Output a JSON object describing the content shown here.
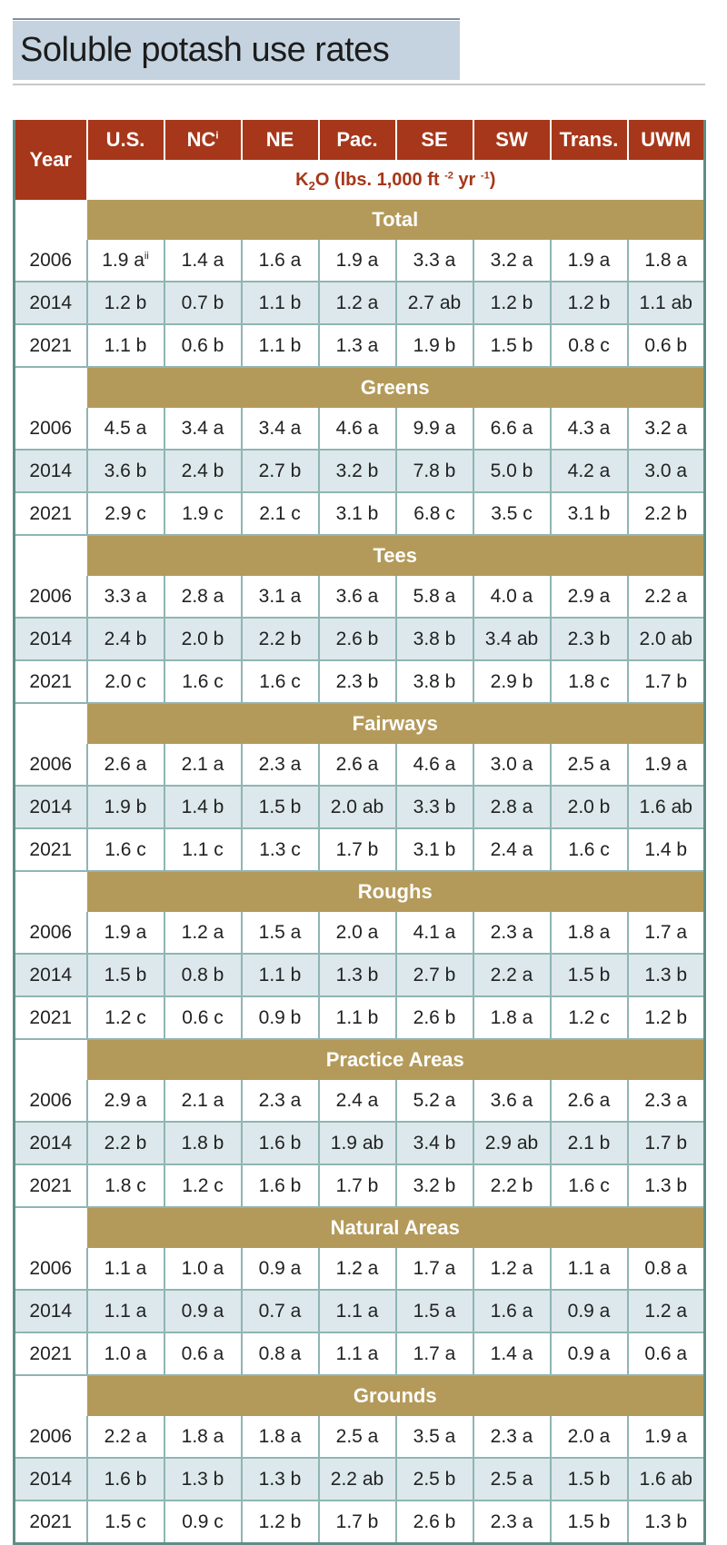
{
  "title": "Soluble potash use rates",
  "header": {
    "year_label": "Year",
    "regions": [
      {
        "label": "U.S.",
        "sup": ""
      },
      {
        "label": "NC",
        "sup": "i"
      },
      {
        "label": "NE",
        "sup": ""
      },
      {
        "label": "Pac.",
        "sup": ""
      },
      {
        "label": "SE",
        "sup": ""
      },
      {
        "label": "SW",
        "sup": ""
      },
      {
        "label": "Trans.",
        "sup": ""
      },
      {
        "label": "UWM",
        "sup": ""
      }
    ],
    "unit": {
      "k": "K",
      "sub": "2",
      "o": "O",
      "lbs": " (lbs. 1,000 ft ",
      "exp1": "-2",
      "yr": " yr ",
      "exp2": "-1",
      "close": ")"
    }
  },
  "sections": [
    {
      "name": "Total",
      "rows": [
        {
          "year": "2006",
          "values": [
            "1.9 a",
            "1.4 a",
            "1.6 a",
            "1.9 a",
            "3.3 a",
            "3.2 a",
            "1.9 a",
            "1.8 a"
          ],
          "first_sup": "ii"
        },
        {
          "year": "2014",
          "values": [
            "1.2 b",
            "0.7 b",
            "1.1 b",
            "1.2 a",
            "2.7 ab",
            "1.2 b",
            "1.2 b",
            "1.1 ab"
          ]
        },
        {
          "year": "2021",
          "values": [
            "1.1 b",
            "0.6 b",
            "1.1 b",
            "1.3 a",
            "1.9 b",
            "1.5 b",
            "0.8 c",
            "0.6 b"
          ]
        }
      ]
    },
    {
      "name": "Greens",
      "rows": [
        {
          "year": "2006",
          "values": [
            "4.5 a",
            "3.4 a",
            "3.4 a",
            "4.6 a",
            "9.9 a",
            "6.6 a",
            "4.3 a",
            "3.2 a"
          ]
        },
        {
          "year": "2014",
          "values": [
            "3.6 b",
            "2.4 b",
            "2.7 b",
            "3.2 b",
            "7.8 b",
            "5.0 b",
            "4.2 a",
            "3.0 a"
          ]
        },
        {
          "year": "2021",
          "values": [
            "2.9 c",
            "1.9 c",
            "2.1 c",
            "3.1 b",
            "6.8 c",
            "3.5 c",
            "3.1 b",
            "2.2 b"
          ]
        }
      ]
    },
    {
      "name": "Tees",
      "rows": [
        {
          "year": "2006",
          "values": [
            "3.3 a",
            "2.8 a",
            "3.1 a",
            "3.6 a",
            "5.8 a",
            "4.0 a",
            "2.9 a",
            "2.2 a"
          ]
        },
        {
          "year": "2014",
          "values": [
            "2.4 b",
            "2.0 b",
            "2.2 b",
            "2.6 b",
            "3.8 b",
            "3.4 ab",
            "2.3 b",
            "2.0 ab"
          ]
        },
        {
          "year": "2021",
          "values": [
            "2.0 c",
            "1.6 c",
            "1.6 c",
            "2.3 b",
            "3.8 b",
            "2.9 b",
            "1.8 c",
            "1.7 b"
          ]
        }
      ]
    },
    {
      "name": "Fairways",
      "rows": [
        {
          "year": "2006",
          "values": [
            "2.6 a",
            "2.1 a",
            "2.3 a",
            "2.6 a",
            "4.6 a",
            "3.0 a",
            "2.5 a",
            "1.9 a"
          ]
        },
        {
          "year": "2014",
          "values": [
            "1.9 b",
            "1.4 b",
            "1.5 b",
            "2.0 ab",
            "3.3 b",
            "2.8 a",
            "2.0 b",
            "1.6 ab"
          ]
        },
        {
          "year": "2021",
          "values": [
            "1.6 c",
            "1.1 c",
            "1.3 c",
            "1.7 b",
            "3.1 b",
            "2.4 a",
            "1.6 c",
            "1.4 b"
          ]
        }
      ]
    },
    {
      "name": "Roughs",
      "rows": [
        {
          "year": "2006",
          "values": [
            "1.9 a",
            "1.2 a",
            "1.5 a",
            "2.0 a",
            "4.1 a",
            "2.3 a",
            "1.8 a",
            "1.7 a"
          ]
        },
        {
          "year": "2014",
          "values": [
            "1.5 b",
            "0.8 b",
            "1.1 b",
            "1.3 b",
            "2.7 b",
            "2.2 a",
            "1.5 b",
            "1.3 b"
          ]
        },
        {
          "year": "2021",
          "values": [
            "1.2 c",
            "0.6 c",
            "0.9 b",
            "1.1 b",
            "2.6 b",
            "1.8 a",
            "1.2 c",
            "1.2 b"
          ]
        }
      ]
    },
    {
      "name": "Practice Areas",
      "rows": [
        {
          "year": "2006",
          "values": [
            "2.9 a",
            "2.1 a",
            "2.3 a",
            "2.4 a",
            "5.2 a",
            "3.6 a",
            "2.6 a",
            "2.3 a"
          ]
        },
        {
          "year": "2014",
          "values": [
            "2.2 b",
            "1.8 b",
            "1.6 b",
            "1.9 ab",
            "3.4 b",
            "2.9 ab",
            "2.1 b",
            "1.7 b"
          ]
        },
        {
          "year": "2021",
          "values": [
            "1.8 c",
            "1.2 c",
            "1.6 b",
            "1.7 b",
            "3.2 b",
            "2.2 b",
            "1.6 c",
            "1.3 b"
          ]
        }
      ]
    },
    {
      "name": "Natural Areas",
      "rows": [
        {
          "year": "2006",
          "values": [
            "1.1 a",
            "1.0 a",
            "0.9 a",
            "1.2 a",
            "1.7 a",
            "1.2 a",
            "1.1 a",
            "0.8 a"
          ]
        },
        {
          "year": "2014",
          "values": [
            "1.1 a",
            "0.9 a",
            "0.7 a",
            "1.1 a",
            "1.5 a",
            "1.6 a",
            "0.9 a",
            "1.2 a"
          ]
        },
        {
          "year": "2021",
          "values": [
            "1.0 a",
            "0.6 a",
            "0.8 a",
            "1.1 a",
            "1.7 a",
            "1.4 a",
            "0.9 a",
            "0.6 a"
          ]
        }
      ]
    },
    {
      "name": "Grounds",
      "rows": [
        {
          "year": "2006",
          "values": [
            "2.2 a",
            "1.8 a",
            "1.8 a",
            "2.5 a",
            "3.5 a",
            "2.3 a",
            "2.0 a",
            "1.9 a"
          ]
        },
        {
          "year": "2014",
          "values": [
            "1.6 b",
            "1.3 b",
            "1.3 b",
            "2.2 ab",
            "2.5 b",
            "2.5 a",
            "1.5 b",
            "1.6 ab"
          ]
        },
        {
          "year": "2021",
          "values": [
            "1.5 c",
            "0.9 c",
            "1.2 b",
            "1.7 b",
            "2.6 b",
            "2.3 a",
            "1.5 b",
            "1.3 b"
          ]
        }
      ]
    }
  ]
}
